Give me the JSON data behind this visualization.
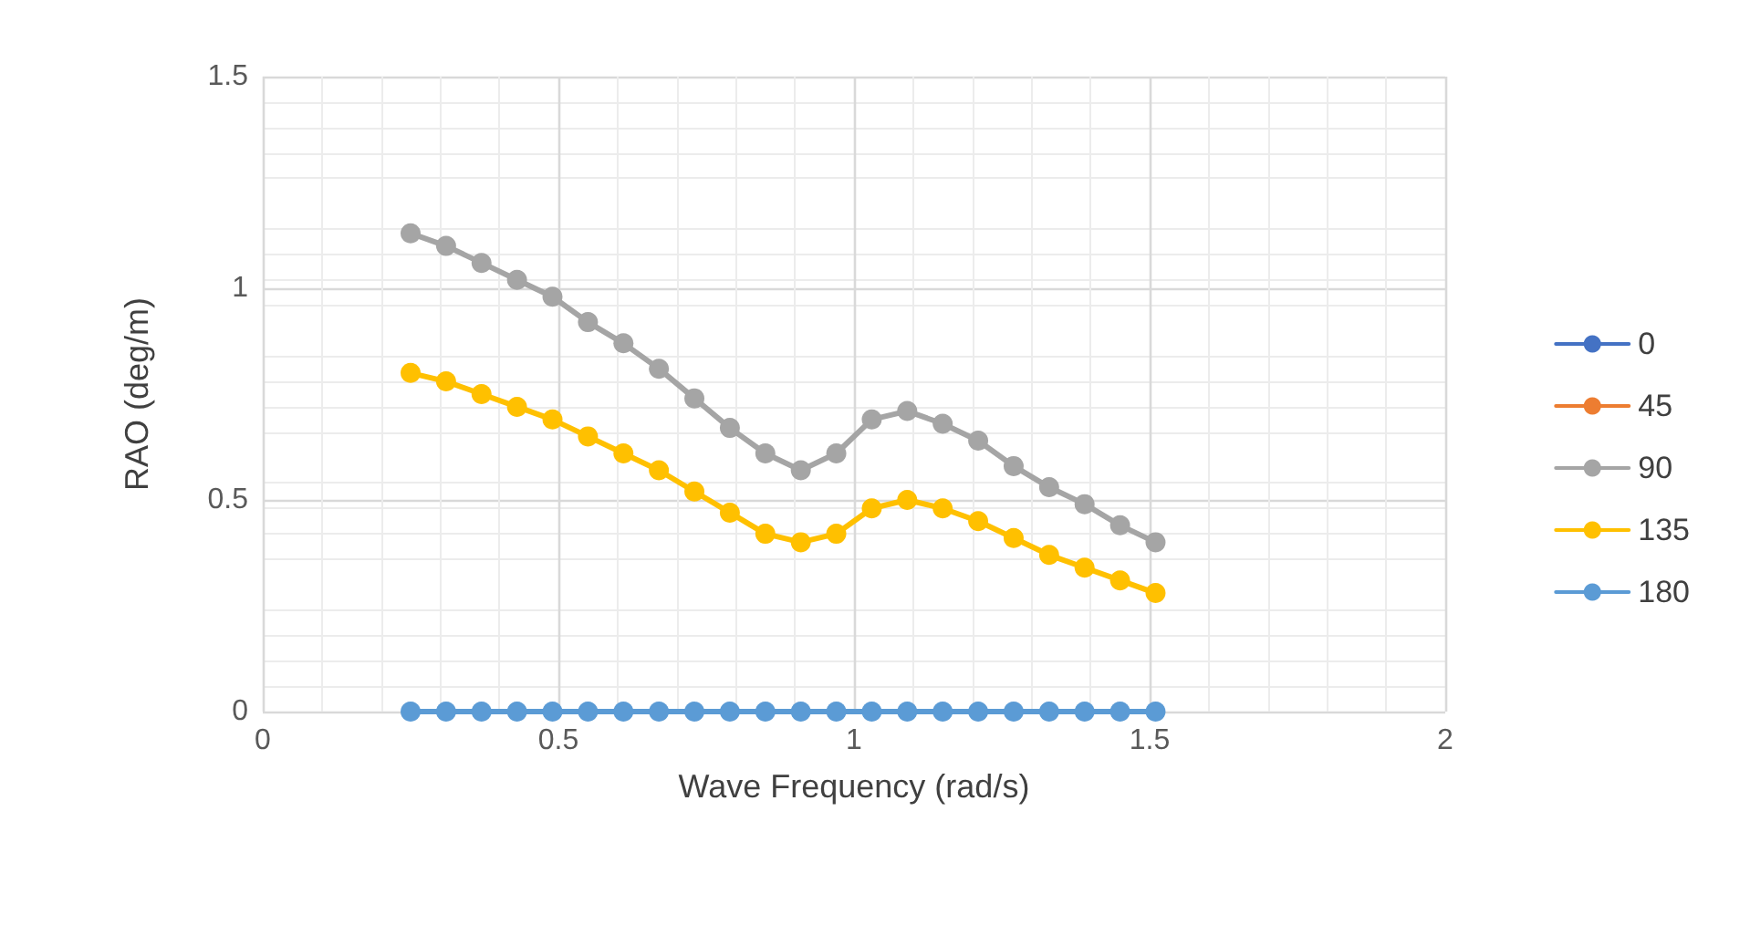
{
  "chart_data": {
    "type": "line",
    "xlabel": "Wave Frequency (rad/s)",
    "ylabel": "RAO (deg/m)",
    "x": [
      0.25,
      0.31,
      0.37,
      0.43,
      0.49,
      0.55,
      0.61,
      0.67,
      0.73,
      0.79,
      0.85,
      0.91,
      0.97,
      1.03,
      1.09,
      1.15,
      1.21,
      1.27,
      1.33,
      1.39,
      1.45,
      1.51
    ],
    "series": [
      {
        "name": "0",
        "color": "#4472c4",
        "values": [
          null,
          null,
          null,
          null,
          null,
          null,
          null,
          null,
          null,
          null,
          null,
          null,
          null,
          null,
          null,
          null,
          null,
          null,
          null,
          null,
          null,
          null
        ]
      },
      {
        "name": "45",
        "color": "#ed7d31",
        "values": [
          null,
          null,
          null,
          null,
          null,
          null,
          null,
          null,
          null,
          null,
          null,
          null,
          null,
          null,
          null,
          null,
          null,
          null,
          null,
          null,
          null,
          null
        ]
      },
      {
        "name": "90",
        "color": "#a5a5a5",
        "values": [
          1.13,
          1.1,
          1.06,
          1.02,
          0.98,
          0.92,
          0.87,
          0.81,
          0.74,
          0.67,
          0.61,
          0.57,
          0.61,
          0.69,
          0.71,
          0.68,
          0.64,
          0.58,
          0.53,
          0.49,
          0.44,
          0.4
        ]
      },
      {
        "name": "135",
        "color": "#ffc000",
        "values": [
          0.8,
          0.78,
          0.75,
          0.72,
          0.69,
          0.65,
          0.61,
          0.57,
          0.52,
          0.47,
          0.42,
          0.4,
          0.42,
          0.48,
          0.5,
          0.48,
          0.45,
          0.41,
          0.37,
          0.34,
          0.31,
          0.28
        ]
      },
      {
        "name": "180",
        "color": "#5b9bd5",
        "values": [
          0,
          0,
          0,
          0,
          0,
          0,
          0,
          0,
          0,
          0,
          0,
          0,
          0,
          0,
          0,
          0,
          0,
          0,
          0,
          0,
          0,
          0
        ]
      }
    ],
    "xlim": [
      0,
      2
    ],
    "xticks": [
      0,
      0.5,
      1,
      1.5,
      2
    ],
    "ylim": [
      0,
      1.5
    ],
    "yticks": [
      0,
      0.5,
      1,
      1.5
    ],
    "grid": true,
    "legend": "right",
    "marker": "circle",
    "line_style": "solid"
  }
}
